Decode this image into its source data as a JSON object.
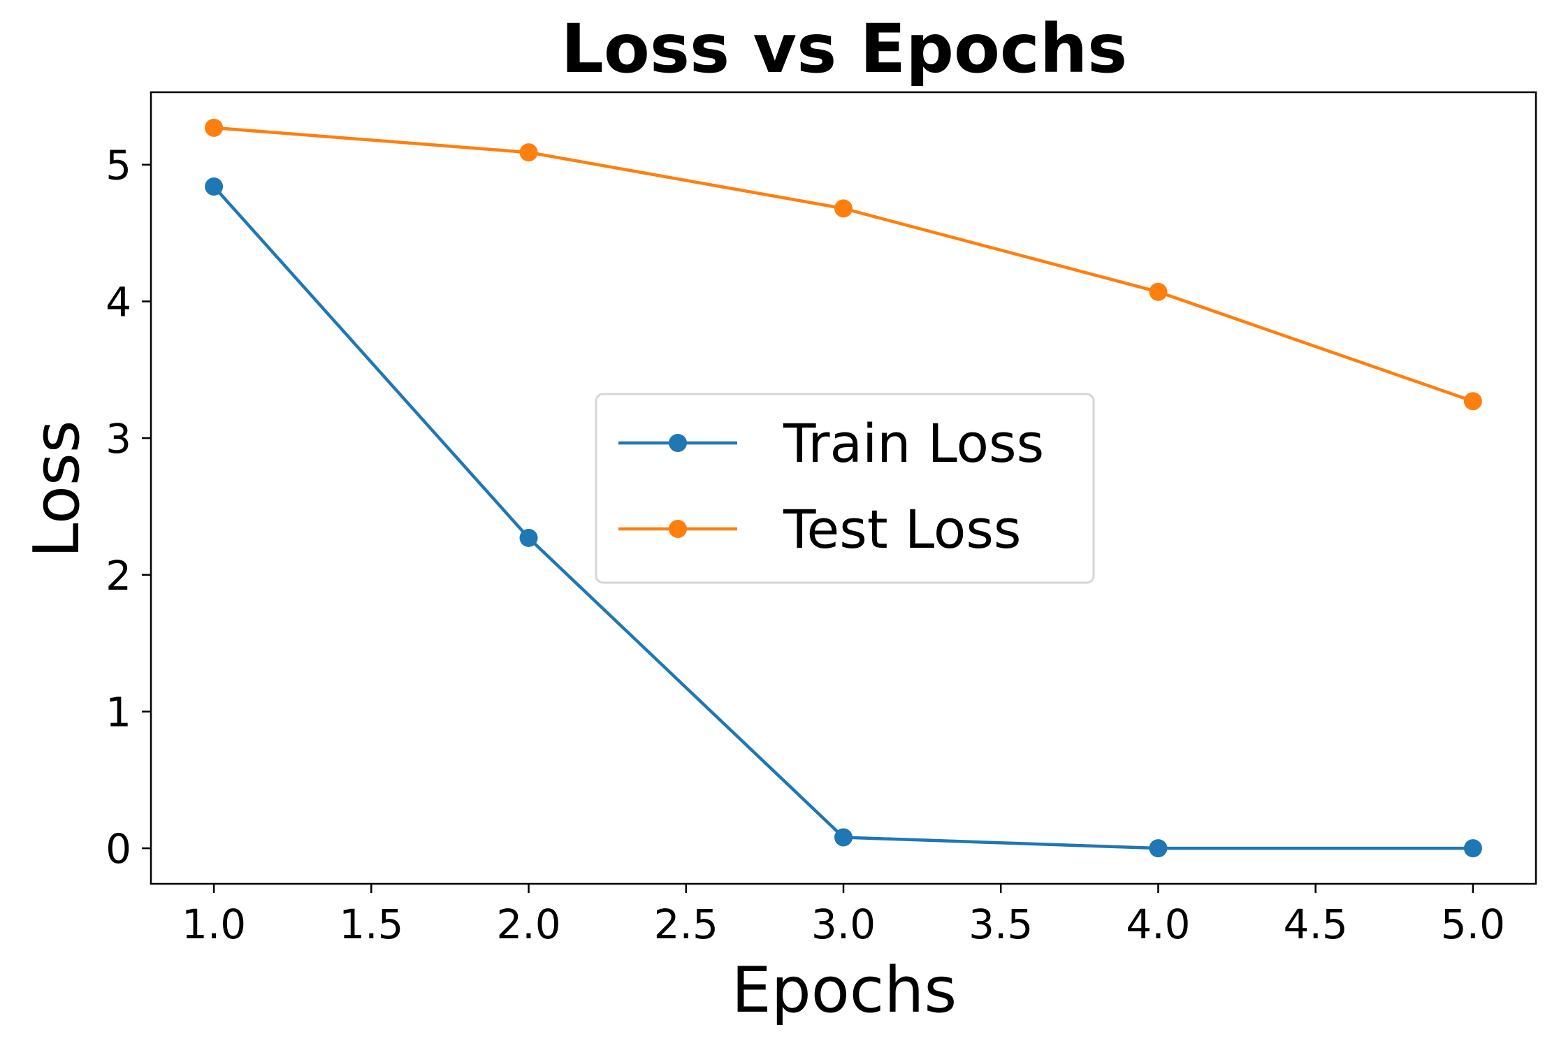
{
  "chart_data": {
    "type": "line",
    "title": "Loss vs Epochs",
    "xlabel": "Epochs",
    "ylabel": "Loss",
    "xlim": [
      0.8,
      5.2
    ],
    "ylim": [
      -0.26,
      5.53
    ],
    "x_ticks": [
      1.0,
      1.5,
      2.0,
      2.5,
      3.0,
      3.5,
      4.0,
      4.5,
      5.0
    ],
    "x_tick_labels": [
      "1.0",
      "1.5",
      "2.0",
      "2.5",
      "3.0",
      "3.5",
      "4.0",
      "4.5",
      "5.0"
    ],
    "y_ticks": [
      0,
      1,
      2,
      3,
      4,
      5
    ],
    "y_tick_labels": [
      "0",
      "1",
      "2",
      "3",
      "4",
      "5"
    ],
    "grid": false,
    "legend_position": "center",
    "series": [
      {
        "name": "Train Loss",
        "color": "#1f77b4",
        "marker": "circle",
        "x": [
          1,
          2,
          3,
          4,
          5
        ],
        "y": [
          4.84,
          2.27,
          0.08,
          0.0,
          0.0
        ]
      },
      {
        "name": "Test Loss",
        "color": "#ff7f0e",
        "marker": "circle",
        "x": [
          1,
          2,
          3,
          4,
          5
        ],
        "y": [
          5.27,
          5.09,
          4.68,
          4.07,
          3.27
        ]
      }
    ]
  }
}
